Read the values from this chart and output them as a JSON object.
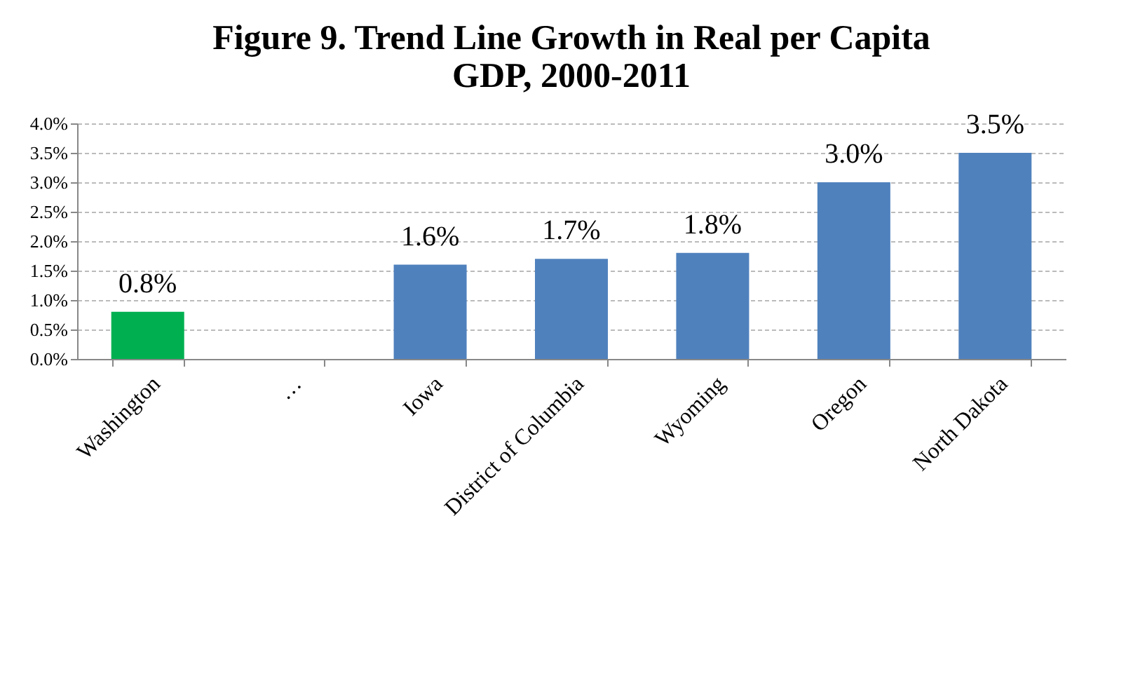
{
  "chart_data": {
    "type": "bar",
    "title": [
      "Figure 9. Trend Line Growth in Real per Capita",
      "GDP, 2000-2011"
    ],
    "categories": [
      "Washington",
      "…",
      "Iowa",
      "District of Columbia",
      "Wyoming",
      "Oregon",
      "North Dakota"
    ],
    "values": [
      0.8,
      null,
      1.6,
      1.7,
      1.8,
      3.0,
      3.5
    ],
    "colors": [
      "#00b050",
      "#4f81bd",
      "#4f81bd",
      "#4f81bd",
      "#4f81bd",
      "#4f81bd",
      "#4f81bd"
    ],
    "value_labels": [
      "0.8%",
      null,
      "1.6%",
      "1.7%",
      "1.8%",
      "3.0%",
      "3.5%"
    ],
    "ylim": [
      0,
      4
    ],
    "yticks": [
      {
        "value": 0,
        "label": "0.0%"
      },
      {
        "value": 0.5,
        "label": "0.5%"
      },
      {
        "value": 1,
        "label": "1.0%"
      },
      {
        "value": 1.5,
        "label": "1.5%"
      },
      {
        "value": 2,
        "label": "2.0%"
      },
      {
        "value": 2.5,
        "label": "2.5%"
      },
      {
        "value": 3,
        "label": "3.0%"
      },
      {
        "value": 3.5,
        "label": "3.5%"
      },
      {
        "value": 4,
        "label": "4.0%"
      }
    ],
    "grid": "y"
  }
}
